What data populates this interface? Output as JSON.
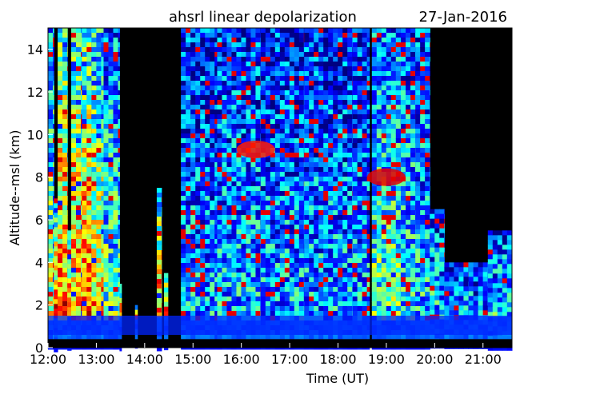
{
  "chart_data": {
    "type": "heatmap",
    "title": "ahsrl  linear depolarization",
    "date": "27-Jan-2016",
    "xlabel": "Time (UT)",
    "ylabel": "Altitude--msl (km)",
    "xlim": [
      12.0,
      21.6
    ],
    "ylim": [
      0,
      15
    ],
    "x_ticks": [
      "12:00",
      "13:00",
      "14:00",
      "15:00",
      "16:00",
      "17:00",
      "18:00",
      "19:00",
      "20:00",
      "21:00"
    ],
    "y_ticks": [
      "0",
      "2",
      "4",
      "6",
      "8",
      "10",
      "12",
      "14"
    ],
    "colormap": "jet",
    "background_color": "#000000",
    "surface_layer_top_km": 1.5,
    "clear_air_max_km": 15,
    "profiles": [
      {
        "start": 12.0,
        "end": 12.12,
        "top": 15.0,
        "depol": 0.55
      },
      {
        "start": 12.12,
        "end": 12.2,
        "top": 7.0,
        "depol": 0.8
      },
      {
        "start": 12.2,
        "end": 12.4,
        "top": 15.0,
        "depol": 0.8
      },
      {
        "start": 12.4,
        "end": 12.48,
        "top": 5.5,
        "depol": 0.85
      },
      {
        "start": 12.48,
        "end": 12.7,
        "top": 15.0,
        "depol": 0.75
      },
      {
        "start": 12.7,
        "end": 12.9,
        "top": 15.0,
        "depol": 0.8
      },
      {
        "start": 12.9,
        "end": 13.15,
        "top": 15.0,
        "depol": 0.65
      },
      {
        "start": 13.15,
        "end": 13.48,
        "top": 15.0,
        "depol": 0.45
      },
      {
        "start": 13.48,
        "end": 13.52,
        "top": 3.0,
        "depol": 0.75
      },
      {
        "start": 13.8,
        "end": 13.85,
        "top": 2.0,
        "depol": 0.8
      },
      {
        "start": 14.25,
        "end": 14.35,
        "top": 7.5,
        "depol": 0.75
      },
      {
        "start": 14.4,
        "end": 14.48,
        "top": 3.5,
        "depol": 0.8
      },
      {
        "start": 14.75,
        "end": 14.95,
        "top": 15.0,
        "depol": 0.3
      },
      {
        "start": 14.95,
        "end": 15.5,
        "top": 15.0,
        "depol": 0.3
      },
      {
        "start": 15.5,
        "end": 16.4,
        "top": 15.0,
        "depol": 0.32
      },
      {
        "start": 16.4,
        "end": 17.3,
        "top": 15.0,
        "depol": 0.3
      },
      {
        "start": 17.3,
        "end": 18.3,
        "top": 15.0,
        "depol": 0.3
      },
      {
        "start": 18.3,
        "end": 18.65,
        "top": 15.0,
        "depol": 0.3
      },
      {
        "start": 18.7,
        "end": 19.3,
        "top": 15.0,
        "depol": 0.45
      },
      {
        "start": 19.3,
        "end": 19.6,
        "top": 15.0,
        "depol": 0.4
      },
      {
        "start": 19.6,
        "end": 19.9,
        "top": 15.0,
        "depol": 0.35
      },
      {
        "start": 19.9,
        "end": 20.2,
        "top": 6.5,
        "depol": 0.35
      },
      {
        "start": 20.2,
        "end": 20.7,
        "top": 4.0,
        "depol": 0.3
      },
      {
        "start": 20.7,
        "end": 21.1,
        "top": 4.0,
        "depol": 0.3
      },
      {
        "start": 21.1,
        "end": 21.6,
        "top": 5.5,
        "depol": 0.35
      }
    ],
    "features": [
      {
        "label": "ice_cloud_16",
        "x": 16.3,
        "y": 9.3,
        "depol": 0.85
      },
      {
        "label": "ice_cloud_19",
        "x": 19.0,
        "y": 8.0,
        "depol": 0.9
      }
    ]
  }
}
